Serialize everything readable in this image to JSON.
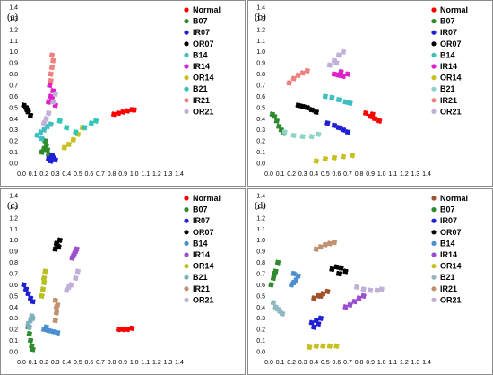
{
  "chart_data": [
    {
      "type": "scatter",
      "panel": "(a)",
      "xlim": [
        0.0,
        1.4
      ],
      "ylim": [
        0.0,
        1.4
      ],
      "xticks": [
        "0.0",
        "0.1",
        "0.2",
        "0.3",
        "0.4",
        "0.5",
        "0.6",
        "0.7",
        "0.8",
        "0.9",
        "1.0",
        "1.1",
        "1.2",
        "1.3",
        "1.4"
      ],
      "yticks": [
        "0.0",
        "0.1",
        "0.2",
        "0.3",
        "0.4",
        "0.5",
        "0.6",
        "0.7",
        "0.8",
        "0.9",
        "1.0",
        "1.1",
        "1.2",
        "1.3",
        "1.4"
      ],
      "legend_position": "top-right",
      "series": [
        {
          "name": "Normal",
          "color": "#ff0000",
          "x": [
            0.82,
            0.86,
            0.9,
            0.94,
            0.98,
            1.0
          ],
          "y": [
            0.44,
            0.45,
            0.46,
            0.47,
            0.48,
            0.48
          ]
        },
        {
          "name": "B07",
          "color": "#2e8b2e",
          "x": [
            0.18,
            0.2,
            0.22,
            0.24,
            0.21,
            0.23
          ],
          "y": [
            0.1,
            0.13,
            0.16,
            0.08,
            0.2,
            0.12
          ]
        },
        {
          "name": "IR07",
          "color": "#1f1fd6",
          "x": [
            0.24,
            0.26,
            0.28,
            0.3,
            0.27
          ],
          "y": [
            0.04,
            0.02,
            0.05,
            0.03,
            0.07
          ]
        },
        {
          "name": "OR07",
          "color": "#000000",
          "x": [
            0.02,
            0.04,
            0.06,
            0.08,
            0.05
          ],
          "y": [
            0.52,
            0.5,
            0.46,
            0.43,
            0.48
          ]
        },
        {
          "name": "B14",
          "color": "#3fbfbf",
          "x": [
            0.14,
            0.17,
            0.2,
            0.23,
            0.26,
            0.18
          ],
          "y": [
            0.25,
            0.28,
            0.3,
            0.33,
            0.35,
            0.22
          ]
        },
        {
          "name": "IR14",
          "color": "#e020c8",
          "x": [
            0.24,
            0.26,
            0.28,
            0.3,
            0.27,
            0.25
          ],
          "y": [
            0.55,
            0.6,
            0.65,
            0.52,
            0.58,
            0.7
          ]
        },
        {
          "name": "OR14",
          "color": "#c8c020",
          "x": [
            0.38,
            0.42,
            0.46,
            0.5,
            0.54
          ],
          "y": [
            0.14,
            0.17,
            0.21,
            0.26,
            0.32
          ]
        },
        {
          "name": "B21",
          "color": "#2fc6b6",
          "x": [
            0.34,
            0.4,
            0.48,
            0.56,
            0.62,
            0.66
          ],
          "y": [
            0.38,
            0.32,
            0.28,
            0.32,
            0.36,
            0.38
          ]
        },
        {
          "name": "IR21",
          "color": "#f08080",
          "x": [
            0.26,
            0.27,
            0.28,
            0.27,
            0.26
          ],
          "y": [
            0.8,
            0.86,
            0.92,
            0.97,
            0.74
          ]
        },
        {
          "name": "OR21",
          "color": "#c0b0d8",
          "x": [
            0.2,
            0.24,
            0.28,
            0.3,
            0.22
          ],
          "y": [
            0.36,
            0.45,
            0.55,
            0.62,
            0.4
          ]
        }
      ]
    },
    {
      "type": "scatter",
      "panel": "(b)",
      "xlim": [
        0.0,
        1.4
      ],
      "ylim": [
        0.0,
        1.4
      ],
      "xticks": [
        "0.0",
        "0.1",
        "0.2",
        "0.3",
        "0.4",
        "0.5",
        "0.6",
        "0.7",
        "0.8",
        "0.9",
        "1.0",
        "1.1",
        "1.2",
        "1.3",
        "1.4"
      ],
      "yticks": [
        "0.0",
        "0.1",
        "0.2",
        "0.3",
        "0.4",
        "0.5",
        "0.6",
        "0.7",
        "0.8",
        "0.9",
        "1.0",
        "1.1",
        "1.2",
        "1.3",
        "1.4"
      ],
      "legend_position": "top-right",
      "series": [
        {
          "name": "Normal",
          "color": "#ff0000",
          "x": [
            0.86,
            0.9,
            0.94,
            0.98,
            0.92
          ],
          "y": [
            0.45,
            0.42,
            0.4,
            0.38,
            0.44
          ]
        },
        {
          "name": "B07",
          "color": "#2e8b2e",
          "x": [
            0.03,
            0.05,
            0.07,
            0.09,
            0.11,
            0.13
          ],
          "y": [
            0.44,
            0.42,
            0.38,
            0.33,
            0.3,
            0.27
          ]
        },
        {
          "name": "IR07",
          "color": "#1f1fd6",
          "x": [
            0.52,
            0.58,
            0.62,
            0.66,
            0.7
          ],
          "y": [
            0.36,
            0.34,
            0.32,
            0.3,
            0.28
          ]
        },
        {
          "name": "OR07",
          "color": "#000000",
          "x": [
            0.26,
            0.3,
            0.34,
            0.38,
            0.42
          ],
          "y": [
            0.52,
            0.51,
            0.5,
            0.48,
            0.46
          ]
        },
        {
          "name": "B14",
          "color": "#3fbfbf",
          "x": [
            0.5,
            0.56,
            0.62,
            0.68,
            0.72
          ],
          "y": [
            0.6,
            0.59,
            0.57,
            0.55,
            0.54
          ]
        },
        {
          "name": "IR14",
          "color": "#e020c8",
          "x": [
            0.58,
            0.62,
            0.66,
            0.7,
            0.64
          ],
          "y": [
            0.8,
            0.79,
            0.78,
            0.8,
            0.82
          ]
        },
        {
          "name": "OR14",
          "color": "#c8c020",
          "x": [
            0.42,
            0.5,
            0.58,
            0.66,
            0.74
          ],
          "y": [
            0.02,
            0.04,
            0.05,
            0.06,
            0.07
          ]
        },
        {
          "name": "B21",
          "color": "#8fd3c8",
          "x": [
            0.14,
            0.22,
            0.3,
            0.38,
            0.44
          ],
          "y": [
            0.28,
            0.25,
            0.24,
            0.24,
            0.26
          ]
        },
        {
          "name": "IR21",
          "color": "#f08080",
          "x": [
            0.18,
            0.22,
            0.26,
            0.3,
            0.34
          ],
          "y": [
            0.72,
            0.76,
            0.79,
            0.81,
            0.83
          ]
        },
        {
          "name": "OR21",
          "color": "#c0b0d8",
          "x": [
            0.54,
            0.58,
            0.62,
            0.66,
            0.6
          ],
          "y": [
            0.88,
            0.92,
            0.97,
            1.0,
            0.9
          ]
        }
      ]
    },
    {
      "type": "scatter",
      "panel": "(c)",
      "xlim": [
        0.0,
        1.4
      ],
      "ylim": [
        0.0,
        1.4
      ],
      "xticks": [
        "0.0",
        "0.1",
        "0.2",
        "0.3",
        "0.4",
        "0.5",
        "0.6",
        "0.7",
        "0.8",
        "0.9",
        "1.0",
        "1.1",
        "1.2",
        "1.3",
        "1.4"
      ],
      "yticks": [
        "0.0",
        "0.1",
        "0.2",
        "0.3",
        "0.4",
        "0.5",
        "0.6",
        "0.7",
        "0.8",
        "0.9",
        "1.0",
        "1.1",
        "1.2",
        "1.3",
        "1.4"
      ],
      "legend_position": "top-right",
      "series": [
        {
          "name": "Normal",
          "color": "#ff0000",
          "x": [
            0.86,
            0.9,
            0.94,
            0.98
          ],
          "y": [
            0.2,
            0.2,
            0.2,
            0.21
          ]
        },
        {
          "name": "B07",
          "color": "#2e8b2e",
          "x": [
            0.06,
            0.07,
            0.08,
            0.09,
            0.1
          ],
          "y": [
            0.22,
            0.16,
            0.1,
            0.05,
            0.02
          ]
        },
        {
          "name": "IR07",
          "color": "#1f1fd6",
          "x": [
            0.02,
            0.04,
            0.06,
            0.08,
            0.1
          ],
          "y": [
            0.6,
            0.56,
            0.52,
            0.48,
            0.45
          ]
        },
        {
          "name": "OR07",
          "color": "#000000",
          "x": [
            0.3,
            0.32,
            0.34,
            0.31,
            0.33
          ],
          "y": [
            0.92,
            0.95,
            1.0,
            0.97,
            0.94
          ]
        },
        {
          "name": "B14",
          "color": "#4a8fd0",
          "x": [
            0.2,
            0.24,
            0.28,
            0.32,
            0.22
          ],
          "y": [
            0.2,
            0.19,
            0.18,
            0.17,
            0.22
          ]
        },
        {
          "name": "IR14",
          "color": "#9b4fd0",
          "x": [
            0.45,
            0.47,
            0.49,
            0.48,
            0.46
          ],
          "y": [
            0.84,
            0.88,
            0.92,
            0.9,
            0.86
          ]
        },
        {
          "name": "OR14",
          "color": "#b8c020",
          "x": [
            0.18,
            0.19,
            0.2,
            0.21,
            0.2
          ],
          "y": [
            0.5,
            0.56,
            0.62,
            0.72,
            0.66
          ]
        },
        {
          "name": "B21",
          "color": "#7fb0c0",
          "x": [
            0.06,
            0.08,
            0.1,
            0.09,
            0.07
          ],
          "y": [
            0.25,
            0.28,
            0.3,
            0.32,
            0.22
          ]
        },
        {
          "name": "IR21",
          "color": "#c09070",
          "x": [
            0.3,
            0.31,
            0.32,
            0.3,
            0.31
          ],
          "y": [
            0.28,
            0.35,
            0.42,
            0.46,
            0.4
          ]
        },
        {
          "name": "OR21",
          "color": "#c0b0d8",
          "x": [
            0.4,
            0.44,
            0.48,
            0.5,
            0.42
          ],
          "y": [
            0.55,
            0.6,
            0.66,
            0.72,
            0.58
          ]
        }
      ]
    },
    {
      "type": "scatter",
      "panel": "(d)",
      "xlim": [
        0.0,
        1.4
      ],
      "ylim": [
        0.0,
        1.4
      ],
      "xticks": [
        "0.0",
        "0.1",
        "0.2",
        "0.3",
        "0.4",
        "0.5",
        "0.6",
        "0.7",
        "0.8",
        "0.9",
        "1.0",
        "1.1",
        "1.2",
        "1.3",
        "1.4"
      ],
      "yticks": [
        "0.0",
        "0.1",
        "0.2",
        "0.3",
        "0.4",
        "0.5",
        "0.6",
        "0.7",
        "0.8",
        "0.9",
        "1.0",
        "1.1",
        "1.2",
        "1.3",
        "1.4"
      ],
      "legend_position": "top-right",
      "series": [
        {
          "name": "Normal",
          "color": "#a0522d",
          "x": [
            0.4,
            0.44,
            0.48,
            0.52,
            0.46
          ],
          "y": [
            0.48,
            0.5,
            0.52,
            0.54,
            0.5
          ]
        },
        {
          "name": "B07",
          "color": "#2e8b2e",
          "x": [
            0.02,
            0.04,
            0.06,
            0.08,
            0.05
          ],
          "y": [
            0.6,
            0.66,
            0.72,
            0.8,
            0.7
          ]
        },
        {
          "name": "IR07",
          "color": "#1f1fd6",
          "x": [
            0.38,
            0.42,
            0.46,
            0.4,
            0.44
          ],
          "y": [
            0.26,
            0.28,
            0.3,
            0.22,
            0.25
          ]
        },
        {
          "name": "OR07",
          "color": "#000000",
          "x": [
            0.56,
            0.6,
            0.64,
            0.68,
            0.62
          ],
          "y": [
            0.74,
            0.76,
            0.75,
            0.72,
            0.7
          ]
        },
        {
          "name": "B14",
          "color": "#4a8fd0",
          "x": [
            0.2,
            0.22,
            0.24,
            0.26,
            0.22
          ],
          "y": [
            0.6,
            0.62,
            0.64,
            0.68,
            0.7
          ]
        },
        {
          "name": "IR14",
          "color": "#9b4fd0",
          "x": [
            0.68,
            0.72,
            0.76,
            0.8,
            0.84
          ],
          "y": [
            0.4,
            0.42,
            0.45,
            0.48,
            0.5
          ]
        },
        {
          "name": "OR14",
          "color": "#c8c020",
          "x": [
            0.36,
            0.42,
            0.48,
            0.54,
            0.6
          ],
          "y": [
            0.04,
            0.05,
            0.05,
            0.05,
            0.05
          ]
        },
        {
          "name": "B21",
          "color": "#8fb8c0",
          "x": [
            0.04,
            0.06,
            0.08,
            0.1,
            0.12
          ],
          "y": [
            0.44,
            0.4,
            0.38,
            0.36,
            0.34
          ]
        },
        {
          "name": "IR21",
          "color": "#c09070",
          "x": [
            0.42,
            0.46,
            0.5,
            0.54,
            0.58
          ],
          "y": [
            0.92,
            0.94,
            0.96,
            0.97,
            0.98
          ]
        },
        {
          "name": "OR21",
          "color": "#c0b0d8",
          "x": [
            0.78,
            0.84,
            0.9,
            0.96,
            1.0
          ],
          "y": [
            0.58,
            0.56,
            0.55,
            0.55,
            0.56
          ]
        }
      ]
    }
  ]
}
